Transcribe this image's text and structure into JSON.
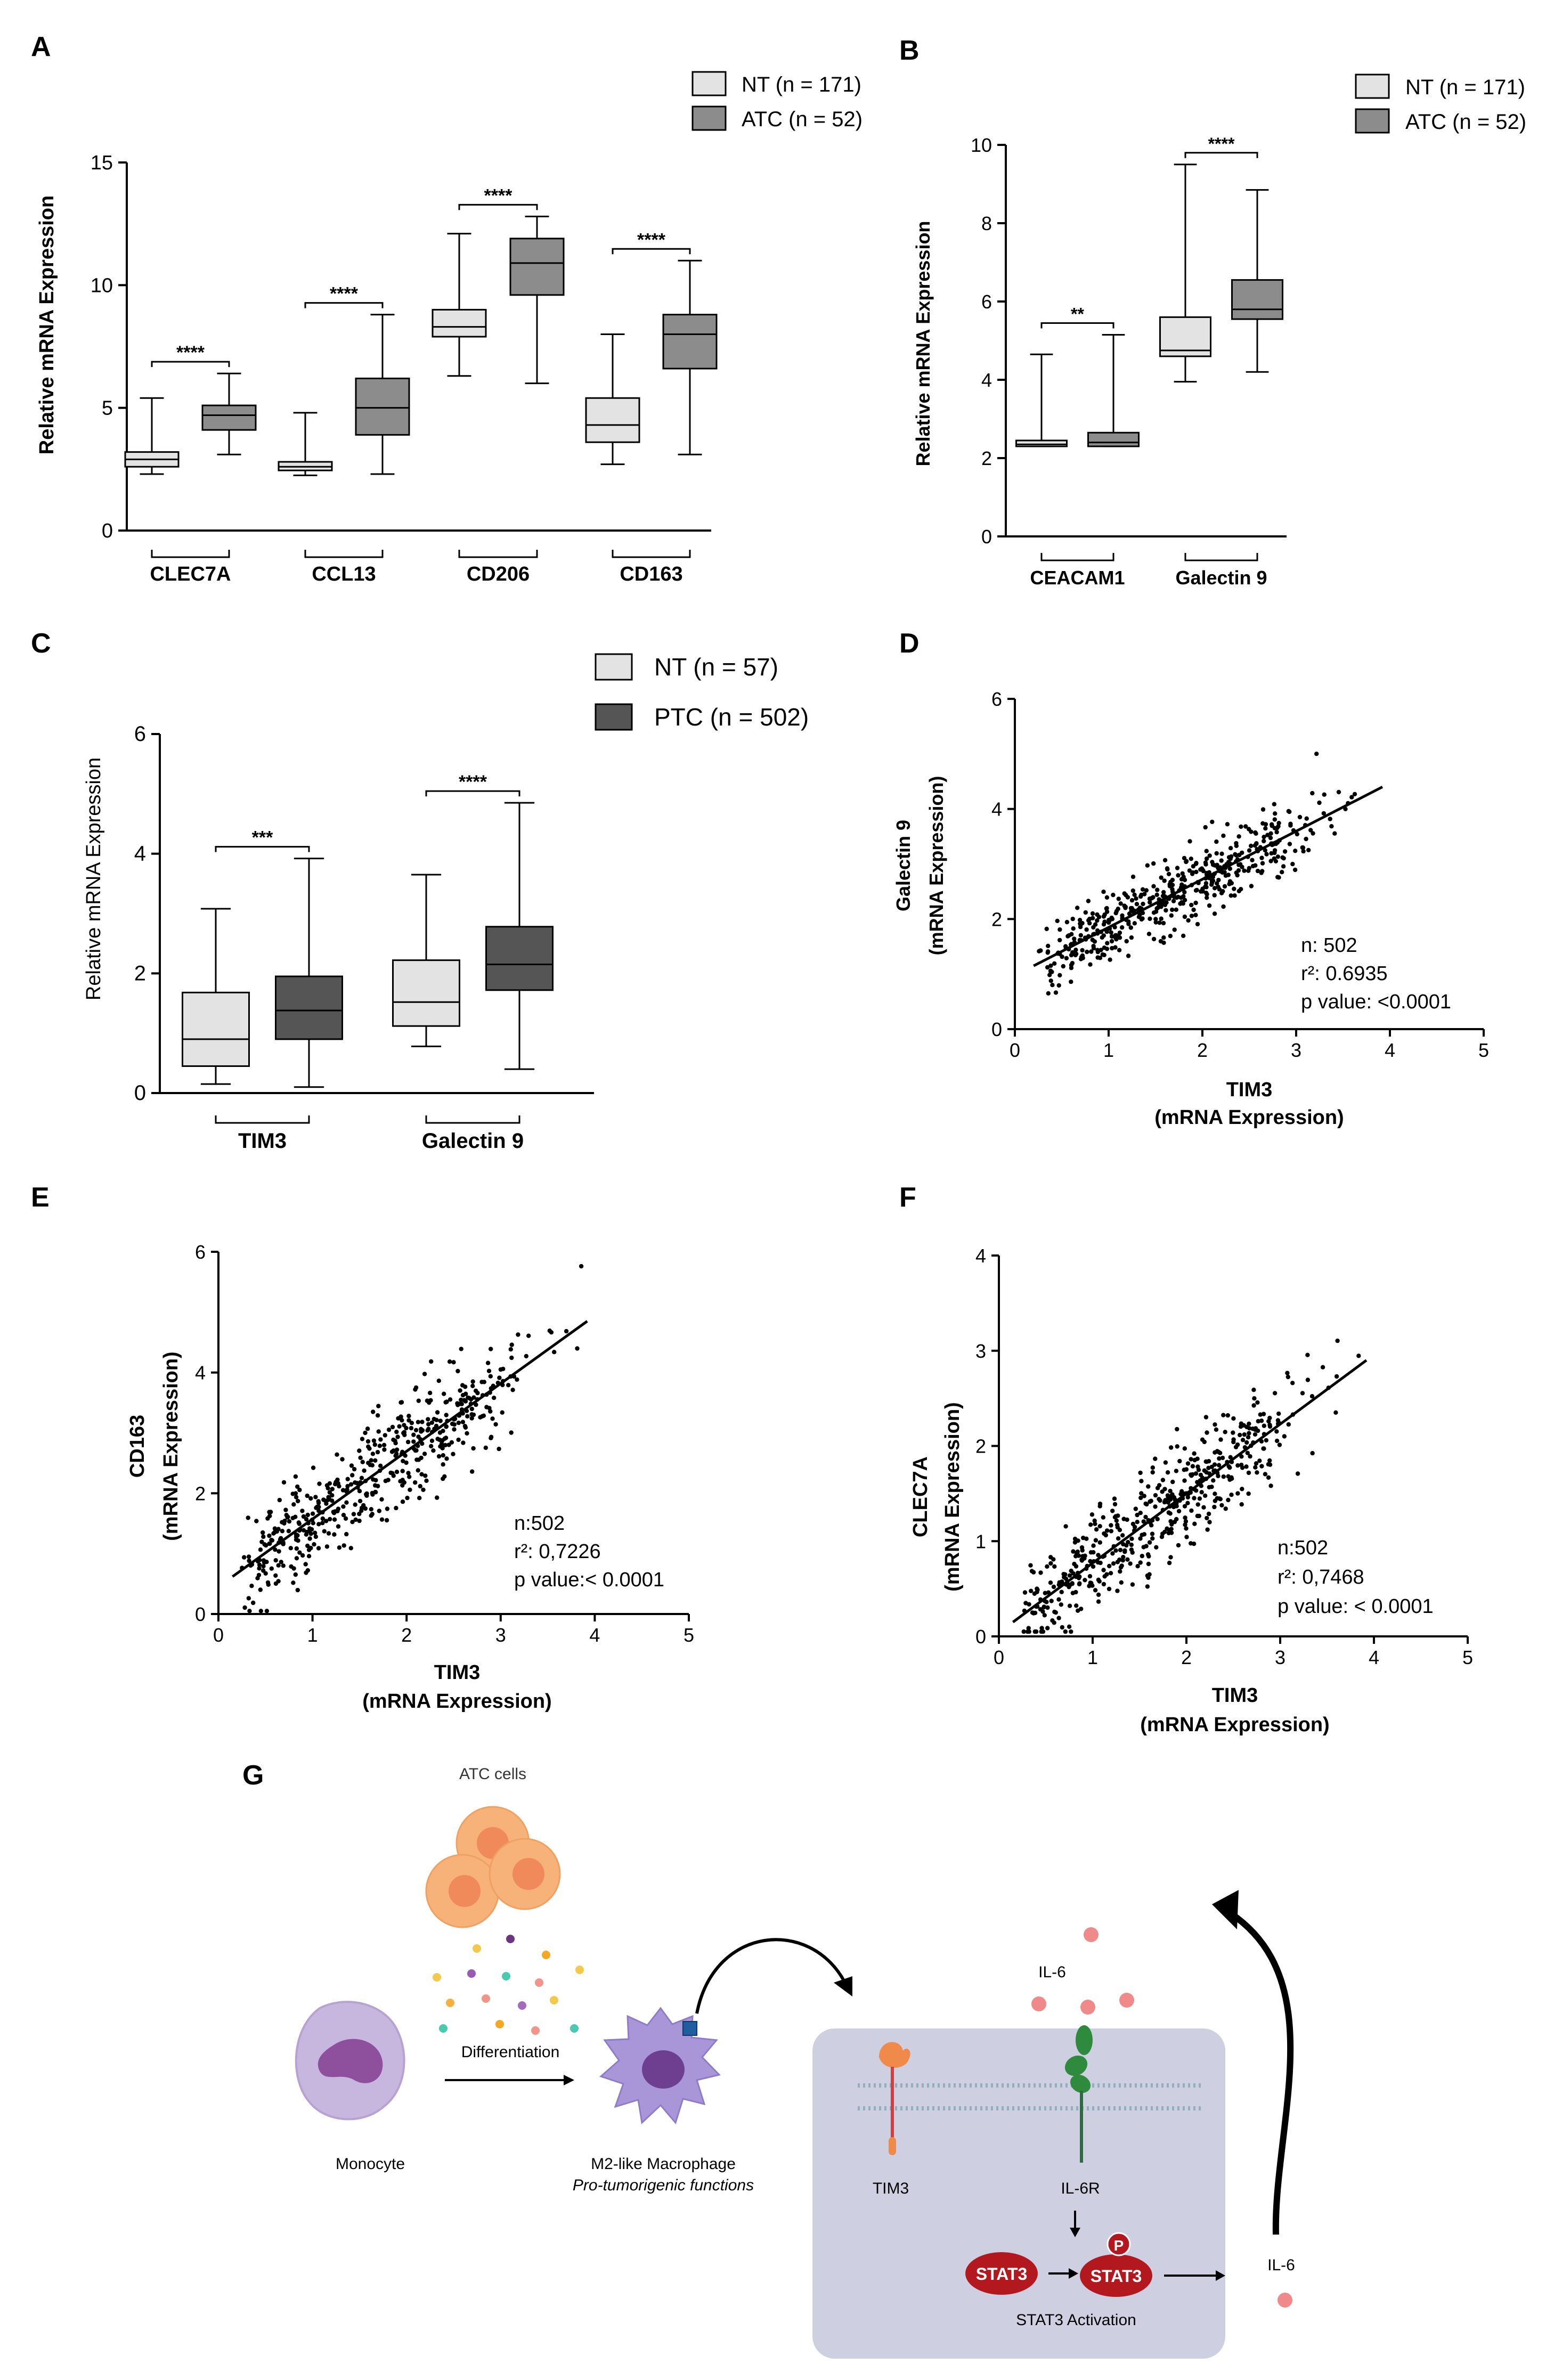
{
  "panels": {
    "A": {
      "label": "A",
      "ylabel": "Relative mRNA Expression",
      "ylim": [
        0,
        15
      ],
      "yticks": [
        "0",
        "5",
        "10",
        "15"
      ],
      "legend": [
        "NT (n = 171)",
        "ATC (n = 52)"
      ],
      "colors": [
        "#e3e3e3",
        "#8c8c8c"
      ],
      "groups": [
        {
          "label": "CLEC7A",
          "sig": "****",
          "boxes": [
            {
              "min": 2.3,
              "q1": 2.6,
              "med": 2.9,
              "q3": 3.2,
              "max": 5.4
            },
            {
              "min": 3.1,
              "q1": 4.1,
              "med": 4.7,
              "q3": 5.1,
              "max": 6.4
            }
          ]
        },
        {
          "label": "CCL13",
          "sig": "****",
          "boxes": [
            {
              "min": 2.25,
              "q1": 2.45,
              "med": 2.6,
              "q3": 2.8,
              "max": 4.8
            },
            {
              "min": 2.3,
              "q1": 3.9,
              "med": 5.0,
              "q3": 6.2,
              "max": 8.8
            }
          ]
        },
        {
          "label": "CD206",
          "sig": "****",
          "boxes": [
            {
              "min": 6.3,
              "q1": 7.9,
              "med": 8.3,
              "q3": 9.0,
              "max": 12.1
            },
            {
              "min": 6.0,
              "q1": 9.6,
              "med": 10.9,
              "q3": 11.9,
              "max": 12.8
            }
          ]
        },
        {
          "label": "CD163",
          "sig": "****",
          "boxes": [
            {
              "min": 2.7,
              "q1": 3.6,
              "med": 4.3,
              "q3": 5.4,
              "max": 8.0
            },
            {
              "min": 3.1,
              "q1": 6.6,
              "med": 8.0,
              "q3": 8.8,
              "max": 11.0
            }
          ]
        }
      ]
    },
    "B": {
      "label": "B",
      "ylabel": "Relative mRNA Expression",
      "ylim": [
        0,
        10
      ],
      "yticks": [
        "0",
        "2",
        "4",
        "6",
        "8",
        "10"
      ],
      "legend": [
        "NT (n = 171)",
        "ATC (n = 52)"
      ],
      "colors": [
        "#e3e3e3",
        "#8c8c8c"
      ],
      "groups": [
        {
          "label": "CEACAM1",
          "sig": "**",
          "boxes": [
            {
              "min": 2.3,
              "q1": 2.3,
              "med": 2.35,
              "q3": 2.45,
              "max": 4.65
            },
            {
              "min": 2.3,
              "q1": 2.3,
              "med": 2.4,
              "q3": 2.65,
              "max": 5.15
            }
          ]
        },
        {
          "label": "Galectin 9",
          "sig": "****",
          "boxes": [
            {
              "min": 3.95,
              "q1": 4.6,
              "med": 4.75,
              "q3": 5.6,
              "max": 9.5
            },
            {
              "min": 4.2,
              "q1": 5.55,
              "med": 5.8,
              "q3": 6.55,
              "max": 8.85
            }
          ]
        }
      ]
    },
    "C": {
      "label": "C",
      "ylabel": "Relative mRNA Expression",
      "ylim": [
        0,
        6
      ],
      "yticks": [
        "0",
        "2",
        "4",
        "6"
      ],
      "legend": [
        "NT (n = 57)",
        "PTC (n = 502)"
      ],
      "colors": [
        "#e3e3e3",
        "#555555"
      ],
      "groups": [
        {
          "label": "TIM3",
          "sig": "***",
          "boxes": [
            {
              "min": 0.15,
              "q1": 0.45,
              "med": 0.9,
              "q3": 1.68,
              "max": 3.08
            },
            {
              "min": 0.1,
              "q1": 0.9,
              "med": 1.38,
              "q3": 1.95,
              "max": 3.92
            }
          ]
        },
        {
          "label": "Galectin 9",
          "sig": "****",
          "boxes": [
            {
              "min": 0.78,
              "q1": 1.12,
              "med": 1.52,
              "q3": 2.22,
              "max": 3.65
            },
            {
              "min": 0.4,
              "q1": 1.72,
              "med": 2.15,
              "q3": 2.78,
              "max": 4.85
            }
          ]
        }
      ]
    },
    "D": {
      "label": "D",
      "ylabel": [
        "Galectin 9",
        "(mRNA Expression)"
      ],
      "xlabel": [
        "TIM3",
        "(mRNA Expression)"
      ],
      "xlim": [
        0,
        5
      ],
      "ylim": [
        0,
        6
      ],
      "xticks": [
        "0",
        "1",
        "2",
        "3",
        "4",
        "5"
      ],
      "yticks": [
        "0",
        "2",
        "4",
        "6"
      ],
      "fit": {
        "x0": 0.2,
        "y0": 1.15,
        "x1": 3.92,
        "y1": 4.4
      },
      "stats": [
        "n: 502",
        "r²: 0.6935",
        "p value: <0.0001"
      ],
      "n": 502,
      "seed": 11,
      "slope": 0.87,
      "intercept": 0.97,
      "noise": 0.33
    },
    "E": {
      "label": "E",
      "ylabel": [
        "CD163",
        "(mRNA Expression)"
      ],
      "xlabel": [
        "TIM3",
        "(mRNA Expression)"
      ],
      "xlim": [
        0,
        5
      ],
      "ylim": [
        0,
        6
      ],
      "xticks": [
        "0",
        "1",
        "2",
        "3",
        "4",
        "5"
      ],
      "yticks": [
        "0",
        "2",
        "4",
        "6"
      ],
      "fit": {
        "x0": 0.15,
        "y0": 0.62,
        "x1": 3.92,
        "y1": 4.85
      },
      "stats": [
        "n:502",
        "r²: 0,7226",
        "p value:< 0.0001"
      ],
      "n": 502,
      "seed": 23,
      "slope": 1.12,
      "intercept": 0.45,
      "noise": 0.42
    },
    "F": {
      "label": "F",
      "ylabel": [
        "CLEC7A",
        "(mRNA Expression)"
      ],
      "xlabel": [
        "TIM3",
        "(mRNA Expression)"
      ],
      "xlim": [
        0,
        5
      ],
      "ylim": [
        0,
        4
      ],
      "xticks": [
        "0",
        "1",
        "2",
        "3",
        "4",
        "5"
      ],
      "yticks": [
        "0",
        "1",
        "2",
        "3",
        "4"
      ],
      "fit": {
        "x0": 0.15,
        "y0": 0.15,
        "x1": 3.92,
        "y1": 2.9
      },
      "stats": [
        "n:502",
        "r²: 0,7468",
        "p value: < 0.0001"
      ],
      "n": 502,
      "seed": 37,
      "slope": 0.73,
      "intercept": 0.04,
      "noise": 0.27
    },
    "G": {
      "label": "G",
      "atc_cells": "ATC cells",
      "differentiation": "Differentiation",
      "monocyte": "Monocyte",
      "macrophage": "M2-like Macrophage",
      "macrophage_sub": "Pro-tumorigenic functions",
      "il6_top": "IL-6",
      "tim3": "TIM3",
      "il6r": "IL-6R",
      "stat3_a": "STAT3",
      "stat3_b": "STAT3",
      "p": "P",
      "il6_out": "IL-6",
      "stat3_activation": "STAT3 Activation"
    }
  }
}
